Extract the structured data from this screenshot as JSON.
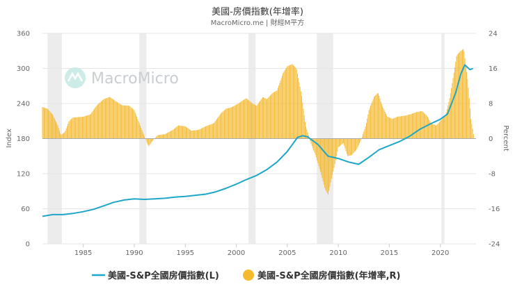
{
  "chart_data": {
    "type": "bar+line",
    "title": "美國-房價指數(年增率)",
    "subtitle": "MacroMicro.me | 財經M平方",
    "watermark": "MacroMicro",
    "ylabel_left": "Index",
    "ylabel_right": "Percent",
    "x_range": [
      1981.0,
      2023.5
    ],
    "x_ticks": [
      1985,
      1990,
      1995,
      2000,
      2005,
      2010,
      2015,
      2020
    ],
    "y_left": {
      "range": [
        0,
        360
      ],
      "ticks": [
        0,
        60,
        120,
        180,
        240,
        300,
        360
      ]
    },
    "y_right": {
      "range": [
        -24,
        24
      ],
      "ticks": [
        -24,
        -16,
        -8,
        0,
        8,
        16,
        24
      ]
    },
    "recessions": [
      [
        1981.5,
        1982.9
      ],
      [
        1990.5,
        1991.2
      ],
      [
        2001.2,
        2001.9
      ],
      [
        2007.9,
        2009.5
      ],
      [
        2020.1,
        2020.4
      ]
    ],
    "legend_position": "bottom",
    "series": [
      {
        "name": "美國-S&P全國房價指數(L)",
        "axis": "left",
        "color": "#1ea6c9",
        "points": [
          [
            1981.0,
            47
          ],
          [
            1982.0,
            50
          ],
          [
            1983.0,
            50
          ],
          [
            1984.0,
            52
          ],
          [
            1985.0,
            55
          ],
          [
            1986.0,
            59
          ],
          [
            1987.0,
            65
          ],
          [
            1988.0,
            71
          ],
          [
            1989.0,
            75
          ],
          [
            1990.0,
            77
          ],
          [
            1991.0,
            76
          ],
          [
            1992.0,
            77
          ],
          [
            1993.0,
            78
          ],
          [
            1994.0,
            80
          ],
          [
            1995.0,
            81
          ],
          [
            1996.0,
            83
          ],
          [
            1997.0,
            85
          ],
          [
            1998.0,
            89
          ],
          [
            1999.0,
            95
          ],
          [
            2000.0,
            102
          ],
          [
            2001.0,
            110
          ],
          [
            2002.0,
            117
          ],
          [
            2003.0,
            127
          ],
          [
            2004.0,
            140
          ],
          [
            2005.0,
            158
          ],
          [
            2006.0,
            182
          ],
          [
            2006.5,
            185
          ],
          [
            2007.0,
            183
          ],
          [
            2008.0,
            170
          ],
          [
            2009.0,
            150
          ],
          [
            2010.0,
            146
          ],
          [
            2011.0,
            140
          ],
          [
            2012.0,
            136
          ],
          [
            2013.0,
            148
          ],
          [
            2014.0,
            161
          ],
          [
            2015.0,
            168
          ],
          [
            2016.0,
            175
          ],
          [
            2017.0,
            184
          ],
          [
            2018.0,
            196
          ],
          [
            2019.0,
            205
          ],
          [
            2020.0,
            213
          ],
          [
            2020.7,
            222
          ],
          [
            2021.5,
            258
          ],
          [
            2022.0,
            290
          ],
          [
            2022.4,
            306
          ],
          [
            2022.9,
            298
          ],
          [
            2023.2,
            300
          ]
        ]
      },
      {
        "name": "美國-S&P全國房價指數(年增率,R)",
        "axis": "right",
        "color": "#f5b92e",
        "points": [
          [
            1981.0,
            7.2
          ],
          [
            1981.5,
            6.8
          ],
          [
            1982.0,
            5.5
          ],
          [
            1982.5,
            3.0
          ],
          [
            1982.8,
            0.8
          ],
          [
            1983.2,
            1.5
          ],
          [
            1983.6,
            4.0
          ],
          [
            1984.0,
            4.8
          ],
          [
            1985.0,
            5.0
          ],
          [
            1985.7,
            5.5
          ],
          [
            1986.3,
            7.5
          ],
          [
            1987.0,
            9.0
          ],
          [
            1987.6,
            9.5
          ],
          [
            1988.2,
            8.5
          ],
          [
            1988.8,
            7.6
          ],
          [
            1989.5,
            7.5
          ],
          [
            1990.0,
            6.5
          ],
          [
            1990.5,
            3.5
          ],
          [
            1991.0,
            0.5
          ],
          [
            1991.4,
            -1.8
          ],
          [
            1991.8,
            -0.5
          ],
          [
            1992.3,
            0.8
          ],
          [
            1993.0,
            1.0
          ],
          [
            1993.8,
            2.0
          ],
          [
            1994.3,
            3.0
          ],
          [
            1995.0,
            2.8
          ],
          [
            1995.6,
            1.8
          ],
          [
            1996.3,
            2.0
          ],
          [
            1997.0,
            2.8
          ],
          [
            1997.8,
            3.5
          ],
          [
            1998.5,
            5.8
          ],
          [
            1999.0,
            6.8
          ],
          [
            1999.6,
            7.2
          ],
          [
            2000.2,
            8.0
          ],
          [
            2000.7,
            8.8
          ],
          [
            2001.0,
            9.2
          ],
          [
            2001.6,
            8.0
          ],
          [
            2002.0,
            7.5
          ],
          [
            2002.6,
            9.5
          ],
          [
            2003.0,
            9.0
          ],
          [
            2003.6,
            10.5
          ],
          [
            2004.0,
            11.0
          ],
          [
            2004.6,
            15.0
          ],
          [
            2005.0,
            16.5
          ],
          [
            2005.5,
            17.0
          ],
          [
            2005.9,
            16.0
          ],
          [
            2006.4,
            10.0
          ],
          [
            2006.8,
            3.0
          ],
          [
            2007.3,
            -1.0
          ],
          [
            2007.8,
            -4.0
          ],
          [
            2008.3,
            -8.0
          ],
          [
            2008.7,
            -11.5
          ],
          [
            2009.0,
            -12.8
          ],
          [
            2009.3,
            -9.5
          ],
          [
            2009.7,
            -5.5
          ],
          [
            2010.0,
            -2.0
          ],
          [
            2010.5,
            -1.0
          ],
          [
            2010.9,
            -4.0
          ],
          [
            2011.3,
            -3.8
          ],
          [
            2011.8,
            -2.5
          ],
          [
            2012.2,
            -0.5
          ],
          [
            2012.7,
            3.0
          ],
          [
            2013.0,
            6.5
          ],
          [
            2013.5,
            9.5
          ],
          [
            2013.9,
            10.5
          ],
          [
            2014.3,
            7.5
          ],
          [
            2014.8,
            5.0
          ],
          [
            2015.3,
            4.5
          ],
          [
            2015.8,
            5.0
          ],
          [
            2016.5,
            5.2
          ],
          [
            2017.0,
            5.5
          ],
          [
            2017.6,
            6.0
          ],
          [
            2018.2,
            6.3
          ],
          [
            2018.7,
            5.2
          ],
          [
            2019.1,
            3.5
          ],
          [
            2019.6,
            3.0
          ],
          [
            2020.0,
            4.0
          ],
          [
            2020.5,
            5.2
          ],
          [
            2020.9,
            9.0
          ],
          [
            2021.3,
            14.5
          ],
          [
            2021.6,
            19.0
          ],
          [
            2022.0,
            20.0
          ],
          [
            2022.3,
            20.5
          ],
          [
            2022.7,
            13.0
          ],
          [
            2023.0,
            4.5
          ],
          [
            2023.3,
            0.3
          ]
        ]
      }
    ]
  }
}
